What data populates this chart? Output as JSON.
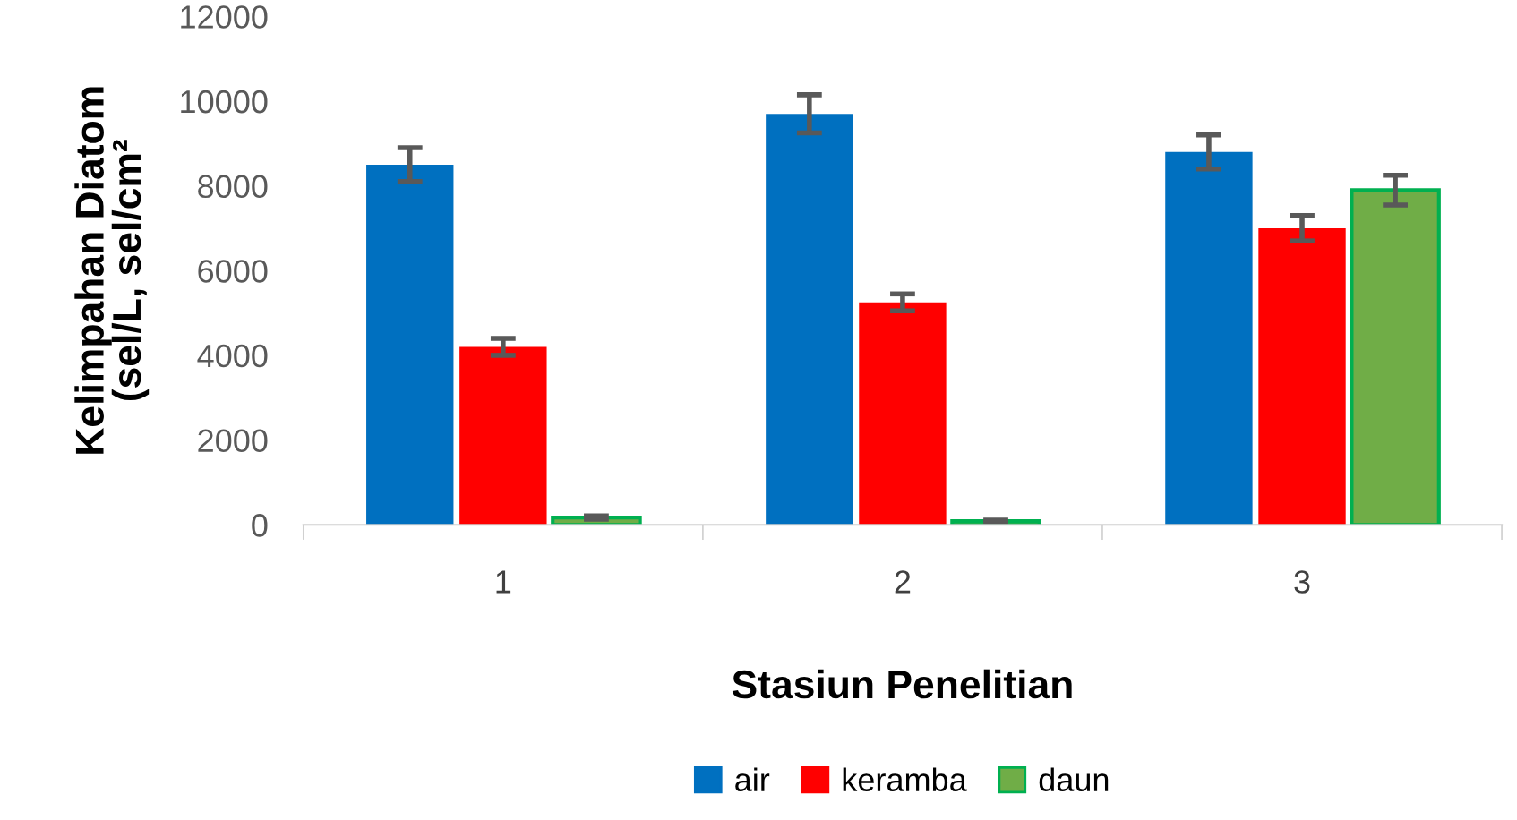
{
  "chart_data": {
    "type": "bar",
    "xlabel": "Stasiun Penelitian",
    "ylabel": "Kelimpahan Diatom\n(sel/L, sel/cm²",
    "categories": [
      "1",
      "2",
      "3"
    ],
    "series": [
      {
        "name": "air",
        "color": "#0070c0",
        "values": [
          8500,
          9700,
          8800
        ],
        "errors": [
          400,
          450,
          400
        ]
      },
      {
        "name": "keramba",
        "color": "#ff0000",
        "values": [
          4200,
          5250,
          7000
        ],
        "errors": [
          200,
          200,
          300
        ]
      },
      {
        "name": "daun",
        "color": "#70ad47",
        "values": [
          170,
          90,
          7900
        ],
        "errors": [
          40,
          20,
          350
        ]
      }
    ],
    "ylim": [
      0,
      12000
    ],
    "yticks": [
      0,
      2000,
      4000,
      6000,
      8000,
      10000,
      12000
    ],
    "grid": false,
    "legend": "bottom"
  }
}
